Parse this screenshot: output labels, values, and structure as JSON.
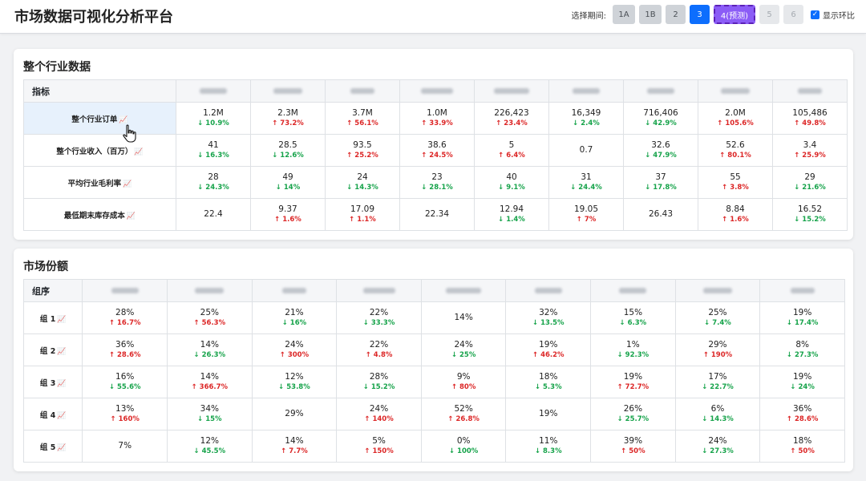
{
  "app": {
    "title": "市场数据可视化分析平台"
  },
  "period": {
    "label": "选择期间:",
    "buttons": [
      "1A",
      "1B",
      "2",
      "3",
      "4(预测)",
      "5",
      "6"
    ],
    "toggle_label": "显示环比"
  },
  "colors": {
    "accent": "#0d6efd",
    "forecast": "#8b5cf6",
    "up": "#dc2626",
    "down": "#16a34a"
  },
  "industry": {
    "title": "整个行业数据",
    "header": "指标",
    "rows": [
      {
        "label": "整个行业订单",
        "cells": [
          {
            "v": "1.2M",
            "c": "↓ 10.9%",
            "d": "down"
          },
          {
            "v": "2.3M",
            "c": "↑ 73.2%",
            "d": "up"
          },
          {
            "v": "3.7M",
            "c": "↑ 56.1%",
            "d": "up"
          },
          {
            "v": "1.0M",
            "c": "↑ 33.9%",
            "d": "up"
          },
          {
            "v": "226,423",
            "c": "↑ 23.4%",
            "d": "up"
          },
          {
            "v": "16,349",
            "c": "↓ 2.4%",
            "d": "down"
          },
          {
            "v": "716,406",
            "c": "↓ 42.9%",
            "d": "down"
          },
          {
            "v": "2.0M",
            "c": "↑ 105.6%",
            "d": "up"
          },
          {
            "v": "105,486",
            "c": "↑ 49.8%",
            "d": "up"
          }
        ]
      },
      {
        "label": "整个行业收入（百万）",
        "cells": [
          {
            "v": "41",
            "c": "↓ 16.3%",
            "d": "down"
          },
          {
            "v": "28.5",
            "c": "↓ 12.6%",
            "d": "down"
          },
          {
            "v": "93.5",
            "c": "↑ 25.2%",
            "d": "up"
          },
          {
            "v": "38.6",
            "c": "↑ 24.5%",
            "d": "up"
          },
          {
            "v": "5",
            "c": "↑ 6.4%",
            "d": "up"
          },
          {
            "v": "0.7",
            "c": "",
            "d": ""
          },
          {
            "v": "32.6",
            "c": "↓ 47.9%",
            "d": "down"
          },
          {
            "v": "52.6",
            "c": "↑ 80.1%",
            "d": "up"
          },
          {
            "v": "3.4",
            "c": "↑ 25.9%",
            "d": "up"
          }
        ]
      },
      {
        "label": "平均行业毛利率",
        "cells": [
          {
            "v": "28",
            "c": "↓ 24.3%",
            "d": "down"
          },
          {
            "v": "49",
            "c": "↓ 14%",
            "d": "down"
          },
          {
            "v": "24",
            "c": "↓ 14.3%",
            "d": "down"
          },
          {
            "v": "23",
            "c": "↓ 28.1%",
            "d": "down"
          },
          {
            "v": "40",
            "c": "↓ 9.1%",
            "d": "down"
          },
          {
            "v": "31",
            "c": "↓ 24.4%",
            "d": "down"
          },
          {
            "v": "37",
            "c": "↓ 17.8%",
            "d": "down"
          },
          {
            "v": "55",
            "c": "↑ 3.8%",
            "d": "up"
          },
          {
            "v": "29",
            "c": "↓ 21.6%",
            "d": "down"
          }
        ]
      },
      {
        "label": "最低期末库存成本",
        "cells": [
          {
            "v": "22.4",
            "c": "",
            "d": ""
          },
          {
            "v": "9.37",
            "c": "↑ 1.6%",
            "d": "up"
          },
          {
            "v": "17.09",
            "c": "↑ 1.1%",
            "d": "up"
          },
          {
            "v": "22.34",
            "c": "",
            "d": ""
          },
          {
            "v": "12.94",
            "c": "↓ 1.4%",
            "d": "down"
          },
          {
            "v": "19.05",
            "c": "↑ 7%",
            "d": "up"
          },
          {
            "v": "26.43",
            "c": "",
            "d": ""
          },
          {
            "v": "8.84",
            "c": "↑ 1.6%",
            "d": "up"
          },
          {
            "v": "16.52",
            "c": "↓ 15.2%",
            "d": "down"
          }
        ]
      }
    ]
  },
  "share": {
    "title": "市场份额",
    "header": "组序",
    "rows": [
      {
        "label": "组 1",
        "cells": [
          {
            "v": "28%",
            "c": "↑ 16.7%",
            "d": "up"
          },
          {
            "v": "25%",
            "c": "↑ 56.3%",
            "d": "up"
          },
          {
            "v": "21%",
            "c": "↓ 16%",
            "d": "down"
          },
          {
            "v": "22%",
            "c": "↓ 33.3%",
            "d": "down"
          },
          {
            "v": "14%",
            "c": "",
            "d": ""
          },
          {
            "v": "32%",
            "c": "↓ 13.5%",
            "d": "down"
          },
          {
            "v": "15%",
            "c": "↓ 6.3%",
            "d": "down"
          },
          {
            "v": "25%",
            "c": "↓ 7.4%",
            "d": "down"
          },
          {
            "v": "19%",
            "c": "↓ 17.4%",
            "d": "down"
          }
        ]
      },
      {
        "label": "组 2",
        "cells": [
          {
            "v": "36%",
            "c": "↑ 28.6%",
            "d": "up"
          },
          {
            "v": "14%",
            "c": "↓ 26.3%",
            "d": "down"
          },
          {
            "v": "24%",
            "c": "↑ 300%",
            "d": "up"
          },
          {
            "v": "22%",
            "c": "↑ 4.8%",
            "d": "up"
          },
          {
            "v": "24%",
            "c": "↓ 25%",
            "d": "down"
          },
          {
            "v": "19%",
            "c": "↑ 46.2%",
            "d": "up"
          },
          {
            "v": "1%",
            "c": "↓ 92.3%",
            "d": "down"
          },
          {
            "v": "29%",
            "c": "↑ 190%",
            "d": "up"
          },
          {
            "v": "8%",
            "c": "↓ 27.3%",
            "d": "down"
          }
        ]
      },
      {
        "label": "组 3",
        "cells": [
          {
            "v": "16%",
            "c": "↓ 55.6%",
            "d": "down"
          },
          {
            "v": "14%",
            "c": "↑ 366.7%",
            "d": "up"
          },
          {
            "v": "12%",
            "c": "↓ 53.8%",
            "d": "down"
          },
          {
            "v": "28%",
            "c": "↓ 15.2%",
            "d": "down"
          },
          {
            "v": "9%",
            "c": "↑ 80%",
            "d": "up"
          },
          {
            "v": "18%",
            "c": "↓ 5.3%",
            "d": "down"
          },
          {
            "v": "19%",
            "c": "↑ 72.7%",
            "d": "up"
          },
          {
            "v": "17%",
            "c": "↓ 22.7%",
            "d": "down"
          },
          {
            "v": "19%",
            "c": "↓ 24%",
            "d": "down"
          }
        ]
      },
      {
        "label": "组 4",
        "cells": [
          {
            "v": "13%",
            "c": "↑ 160%",
            "d": "up"
          },
          {
            "v": "34%",
            "c": "↓ 15%",
            "d": "down"
          },
          {
            "v": "29%",
            "c": "",
            "d": ""
          },
          {
            "v": "24%",
            "c": "↑ 140%",
            "d": "up"
          },
          {
            "v": "52%",
            "c": "↑ 26.8%",
            "d": "up"
          },
          {
            "v": "19%",
            "c": "",
            "d": ""
          },
          {
            "v": "26%",
            "c": "↓ 25.7%",
            "d": "down"
          },
          {
            "v": "6%",
            "c": "↓ 14.3%",
            "d": "down"
          },
          {
            "v": "36%",
            "c": "↑ 28.6%",
            "d": "up"
          }
        ]
      },
      {
        "label": "组 5",
        "cells": [
          {
            "v": "7%",
            "c": "",
            "d": ""
          },
          {
            "v": "12%",
            "c": "↓ 45.5%",
            "d": "down"
          },
          {
            "v": "14%",
            "c": "↑ 7.7%",
            "d": "up"
          },
          {
            "v": "5%",
            "c": "↑ 150%",
            "d": "up"
          },
          {
            "v": "0%",
            "c": "↓ 100%",
            "d": "down"
          },
          {
            "v": "11%",
            "c": "↓ 8.3%",
            "d": "down"
          },
          {
            "v": "39%",
            "c": "↑ 50%",
            "d": "up"
          },
          {
            "v": "24%",
            "c": "↓ 27.3%",
            "d": "down"
          },
          {
            "v": "18%",
            "c": "↑ 50%",
            "d": "up"
          }
        ]
      }
    ]
  }
}
